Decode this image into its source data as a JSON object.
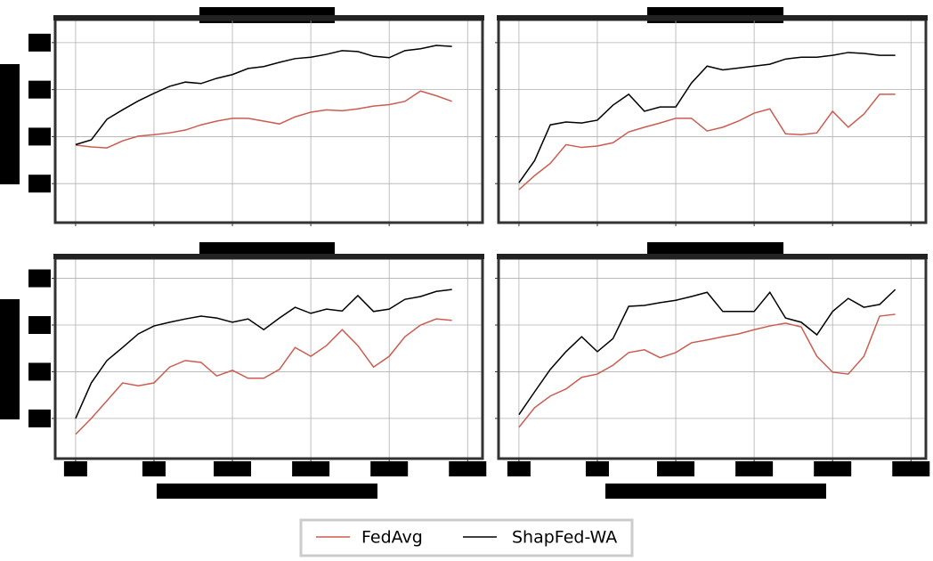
{
  "chart_data": [
    {
      "type": "line",
      "legend": "lower center",
      "grid": true,
      "x": [
        0,
        2,
        4,
        6,
        8,
        10,
        12,
        14,
        16,
        18,
        20,
        22,
        24,
        26,
        28,
        30,
        32,
        34,
        36,
        38,
        40,
        42,
        44,
        46,
        48
      ],
      "xlim": [
        -2.6,
        51.9
      ],
      "xticks": [
        0,
        10,
        20,
        30,
        40,
        50
      ],
      "ylim": [
        31.7,
        74.9
      ],
      "yticks": [
        40,
        50,
        60,
        70
      ],
      "series": [
        {
          "name": "FedAvg",
          "color": "#cd5c50",
          "values": [
            48.2,
            47.8,
            47.6,
            49.1,
            50.1,
            50.4,
            50.8,
            51.4,
            52.5,
            53.3,
            53.9,
            53.9,
            53.3,
            52.7,
            54.2,
            55.2,
            55.7,
            55.5,
            55.9,
            56.5,
            56.8,
            57.5,
            59.7,
            58.7,
            57.5
          ]
        },
        {
          "name": "ShapFed-WA",
          "color": "#000000",
          "values": [
            48.3,
            49.3,
            53.7,
            55.7,
            57.6,
            59.2,
            60.7,
            61.6,
            61.3,
            62.4,
            63.2,
            64.5,
            64.9,
            65.8,
            66.6,
            66.9,
            67.5,
            68.3,
            68.1,
            67.1,
            66.8,
            68.3,
            68.7,
            69.4,
            69.2
          ]
        }
      ]
    },
    {
      "type": "line",
      "grid": true,
      "x": [
        0,
        2,
        4,
        6,
        8,
        10,
        12,
        14,
        16,
        18,
        20,
        22,
        24,
        26,
        28,
        30,
        32,
        34,
        36,
        38,
        40,
        42,
        44,
        46,
        48
      ],
      "xlim": [
        -2.6,
        51.9
      ],
      "xticks": [
        0,
        10,
        20,
        30,
        40,
        50
      ],
      "ylim": [
        31.7,
        74.9
      ],
      "yticks": [
        40,
        50,
        60,
        70
      ],
      "series": [
        {
          "name": "FedAvg",
          "color": "#cd5c50",
          "values": [
            38.7,
            41.7,
            44.3,
            48.3,
            47.7,
            48.0,
            48.7,
            51.0,
            52.0,
            52.9,
            53.9,
            53.9,
            51.2,
            52.0,
            53.3,
            55.0,
            55.9,
            50.6,
            50.4,
            50.8,
            55.4,
            52.0,
            54.8,
            59.0,
            59.0
          ]
        },
        {
          "name": "ShapFed-WA",
          "color": "#000000",
          "values": [
            40.2,
            44.9,
            52.5,
            53.1,
            52.9,
            53.5,
            56.7,
            59.0,
            55.4,
            56.3,
            56.3,
            61.4,
            65.0,
            64.2,
            64.6,
            65.0,
            65.4,
            66.5,
            66.9,
            66.9,
            67.3,
            67.9,
            67.7,
            67.3,
            67.3
          ]
        }
      ]
    },
    {
      "type": "line",
      "grid": true,
      "x": [
        0,
        2,
        4,
        6,
        8,
        10,
        12,
        14,
        16,
        18,
        20,
        22,
        24,
        26,
        28,
        30,
        32,
        34,
        36,
        38,
        40,
        42,
        44,
        46,
        48
      ],
      "xlim": [
        -2.6,
        51.9
      ],
      "xticks": [
        0,
        10,
        20,
        30,
        40,
        50
      ],
      "ylim": [
        31.4,
        74.3
      ],
      "yticks": [
        40,
        50,
        60,
        70
      ],
      "series": [
        {
          "name": "FedAvg",
          "color": "#cd5c50",
          "values": [
            36.6,
            40,
            43.8,
            47.6,
            47.0,
            47.6,
            51.0,
            52.4,
            52.0,
            49.1,
            50.3,
            48.6,
            48.6,
            50.5,
            55.2,
            53.3,
            55.6,
            59.0,
            55.6,
            51.0,
            53.3,
            57.5,
            60.0,
            61.3,
            61.0
          ]
        },
        {
          "name": "ShapFed-WA",
          "color": "#000000",
          "values": [
            40,
            47.6,
            52.4,
            55.2,
            58.1,
            59.8,
            60.6,
            61.3,
            61.9,
            61.5,
            60.6,
            61.3,
            59.0,
            61.5,
            63.8,
            62.5,
            63.4,
            63.0,
            66.3,
            62.9,
            63.4,
            65.5,
            66.1,
            67.2,
            67.6
          ]
        }
      ]
    },
    {
      "type": "line",
      "grid": true,
      "x": [
        0,
        2,
        4,
        6,
        8,
        10,
        12,
        14,
        16,
        18,
        20,
        22,
        24,
        26,
        28,
        30,
        32,
        34,
        36,
        38,
        40,
        42,
        44,
        46,
        48
      ],
      "xlim": [
        -2.6,
        51.9
      ],
      "xticks": [
        0,
        10,
        20,
        30,
        40,
        50
      ],
      "ylim": [
        31.4,
        74.3
      ],
      "yticks": [
        40,
        50,
        60,
        70
      ],
      "series": [
        {
          "name": "FedAvg",
          "color": "#cd5c50",
          "values": [
            38.1,
            42.3,
            44.8,
            46.3,
            48.8,
            49.5,
            51.4,
            54.1,
            54.7,
            53.0,
            54.1,
            56.2,
            56.8,
            57.5,
            58.1,
            59.0,
            59.8,
            60.4,
            59.6,
            53.3,
            49.9,
            49.5,
            53.3,
            61.9,
            62.3
          ]
        },
        {
          "name": "ShapFed-WA",
          "color": "#000000",
          "values": [
            40.8,
            45.7,
            50.5,
            54.3,
            57.5,
            54.3,
            57.1,
            64.0,
            64.2,
            64.8,
            65.3,
            66.1,
            67.0,
            62.9,
            62.9,
            62.9,
            67.0,
            61.5,
            60.6,
            57.9,
            62.9,
            65.7,
            63.8,
            64.4,
            67.6
          ]
        }
      ]
    }
  ]
}
